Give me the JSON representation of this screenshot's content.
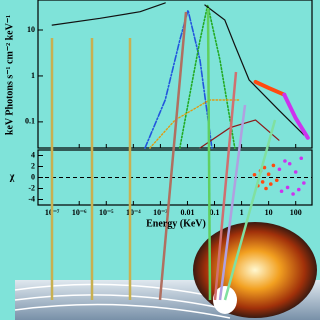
{
  "chart_data": [
    {
      "type": "line",
      "ylabel": "keV Photons s⁻¹ cm⁻² keV⁻¹",
      "log_x": true,
      "log_y": true,
      "xlim": [
        3e-08,
        400
      ],
      "ylim": [
        0.027,
        45
      ],
      "yticks": [
        10,
        1,
        0.1
      ],
      "series": [
        {
          "color": "#111111",
          "style": "solid",
          "linewidth": 1.2,
          "x": [
            1e-07,
            5.9e-06,
            0.00018,
            0.0015
          ],
          "values": [
            12.8,
            18,
            25,
            39
          ]
        },
        {
          "color": "#2255dd",
          "style": "dashdot",
          "linewidth": 1.6,
          "x": [
            0.00027,
            0.0015,
            0.0052,
            0.0105,
            0.029,
            0.08
          ],
          "values": [
            0.027,
            0.3,
            6,
            27,
            2.2,
            0.027
          ]
        },
        {
          "color": "#22aa22",
          "style": "dotted",
          "linewidth": 1.6,
          "x": [
            0.0052,
            0.029,
            0.056,
            0.16,
            0.56
          ],
          "values": [
            0.027,
            6,
            35,
            2.2,
            0.027
          ]
        },
        {
          "color": "#e09a10",
          "style": "dotted",
          "linewidth": 1.4,
          "x": [
            0.00041,
            0.0035,
            0.066,
            0.87
          ],
          "values": [
            0.027,
            0.11,
            0.3,
            0.3
          ]
        },
        {
          "color": "#8b1a1a",
          "style": "solid",
          "linewidth": 1.2,
          "x": [
            0.029,
            0.38,
            3.3,
            24
          ],
          "values": [
            0.027,
            0.075,
            0.11,
            0.04
          ]
        },
        {
          "color": "#111111",
          "style": "solid",
          "linewidth": 1.2,
          "x": [
            0.044,
            0.24,
            0.56,
            1.9,
            24,
            200
          ],
          "values": [
            35,
            16.5,
            4.7,
            0.82,
            0.18,
            0.052
          ]
        },
        {
          "color": "#ff4a10",
          "style": "solid",
          "linewidth": 4,
          "x": [
            3.3,
            10,
            38
          ],
          "values": [
            0.74,
            0.55,
            0.39
          ]
        },
        {
          "color": "#cc33ee",
          "style": "solid",
          "linewidth": 4,
          "x": [
            38,
            100,
            280
          ],
          "values": [
            0.39,
            0.12,
            0.045
          ]
        }
      ]
    },
    {
      "type": "scatter",
      "ylabel": "χ",
      "xlabel": "Energy (KeV)",
      "log_x": true,
      "xlim": [
        3e-08,
        400
      ],
      "ylim": [
        -5,
        5
      ],
      "yticks": [
        4,
        2,
        0,
        -2,
        -4
      ],
      "xticks": [
        {
          "value": 1e-07,
          "label": "10⁻⁷"
        },
        {
          "value": 1e-06,
          "label": "10⁻⁶"
        },
        {
          "value": 1e-05,
          "label": "10⁻⁵"
        },
        {
          "value": 0.0001,
          "label": "10⁻⁴"
        },
        {
          "value": 0.001,
          "label": "10⁻³"
        },
        0.01,
        0.1,
        1,
        10,
        100
      ],
      "series": [
        {
          "color": "#ff4a10",
          "x": [
            3,
            4,
            5,
            6,
            7,
            8,
            10,
            12,
            15,
            20
          ],
          "values": [
            0.5,
            -1.5,
            1.2,
            -0.8,
            1.8,
            -2,
            0.6,
            -1.2,
            2.2,
            -0.5
          ]
        },
        {
          "color": "#cc33ee",
          "x": [
            25,
            30,
            40,
            50,
            60,
            80,
            100,
            130,
            160,
            200
          ],
          "values": [
            1.5,
            -2.5,
            3,
            -1.8,
            2.5,
            -3,
            1,
            -2.2,
            3.5,
            -1
          ]
        }
      ]
    }
  ]
}
